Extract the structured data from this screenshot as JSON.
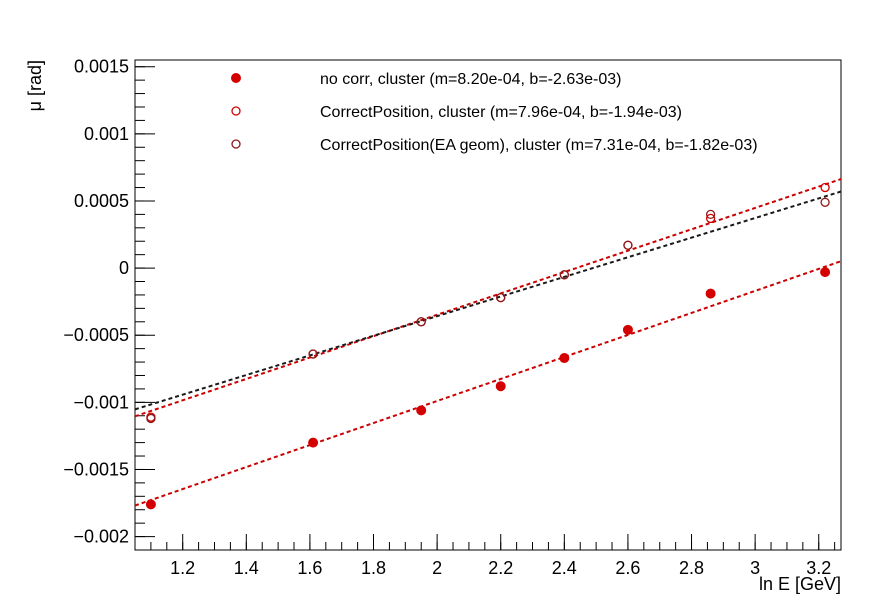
{
  "chart_data": {
    "type": "scatter",
    "title": "",
    "xlabel": "ln E  [GeV]",
    "ylabel": "μ  [rad]",
    "xlim": [
      1.05,
      3.27
    ],
    "ylim": [
      -0.0021,
      0.00155
    ],
    "x_ticks": [
      {
        "value": 1.2,
        "label": "1.2"
      },
      {
        "value": 1.4,
        "label": "1.4"
      },
      {
        "value": 1.6,
        "label": "1.6"
      },
      {
        "value": 1.8,
        "label": "1.8"
      },
      {
        "value": 2.0,
        "label": "2"
      },
      {
        "value": 2.2,
        "label": "2.2"
      },
      {
        "value": 2.4,
        "label": "2.4"
      },
      {
        "value": 2.6,
        "label": "2.6"
      },
      {
        "value": 2.8,
        "label": "2.8"
      },
      {
        "value": 3.0,
        "label": "3"
      },
      {
        "value": 3.2,
        "label": "3.2"
      }
    ],
    "y_ticks": [
      {
        "value": 0.0015,
        "label": "0.0015"
      },
      {
        "value": 0.001,
        "label": "0.001"
      },
      {
        "value": 0.0005,
        "label": "0.0005"
      },
      {
        "value": 0,
        "label": "0"
      },
      {
        "value": -0.0005,
        "label": "−0.0005"
      },
      {
        "value": -0.001,
        "label": "−0.001"
      },
      {
        "value": -0.0015,
        "label": "−0.0015"
      },
      {
        "value": -0.002,
        "label": "−0.002"
      }
    ],
    "x_minor_step": 0.05,
    "y_minor_step": 0.0001,
    "grid": false,
    "legend_position": "top-left",
    "series": [
      {
        "name": "no corr, cluster  (m=8.20e-04, b=-2.63e-03)",
        "marker": "filled-circle",
        "color": "#d40000",
        "fit_color": "#cc0000",
        "x": [
          1.1,
          1.61,
          1.95,
          2.2,
          2.4,
          2.6,
          2.86,
          3.22
        ],
        "y": [
          -0.00176,
          -0.0013,
          -0.00106,
          -0.00088,
          -0.00067,
          -0.00046,
          -0.00019,
          -3e-05
        ],
        "fit": {
          "m": 0.00082,
          "b": -0.00263
        }
      },
      {
        "name": "CorrectPosition, cluster  (m=7.96e-04, b=-1.94e-03)",
        "marker": "open-circle",
        "color": "#d40000",
        "fit_color": "#cc0000",
        "x": [
          1.1,
          1.61,
          1.95,
          2.2,
          2.4,
          2.6,
          2.86,
          3.22
        ],
        "y": [
          -0.00111,
          -0.00064,
          -0.0004,
          -0.00022,
          -5e-05,
          0.00017,
          0.00037,
          0.0006
        ],
        "fit": {
          "m": 0.000796,
          "b": -0.00194
        }
      },
      {
        "name": "CorrectPosition(EA geom), cluster  (m=7.31e-04, b=-1.82e-03)",
        "marker": "open-circle",
        "color": "#8b1a1a",
        "fit_color": "#1a1a1a",
        "x": [
          1.1,
          1.61,
          1.95,
          2.2,
          2.4,
          2.6,
          2.86,
          3.22
        ],
        "y": [
          -0.00112,
          -0.00064,
          -0.0004,
          -0.00022,
          -5e-05,
          0.00017,
          0.0004,
          0.00049
        ],
        "fit": {
          "m": 0.000731,
          "b": -0.00182
        }
      }
    ]
  }
}
